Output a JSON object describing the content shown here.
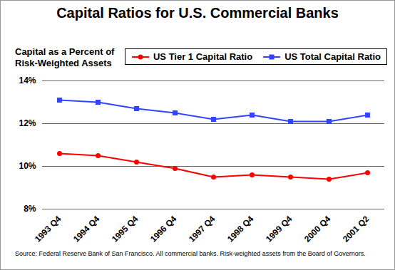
{
  "chart_data": {
    "type": "line",
    "title": "Capital Ratios for U.S. Commercial Banks",
    "ylabel": "Capital as a Percent of\nRisk-Weighted Assets",
    "caption": "Source: Federal Reserve Bank of San Francisco.  All commercial banks.  Risk-weighted assets from the Board of Governors.",
    "categories": [
      "1993 Q4",
      "1994 Q4",
      "1995 Q4",
      "1996 Q4",
      "1997 Q4",
      "1998 Q4",
      "1999 Q4",
      "2000 Q4",
      "2001 Q2"
    ],
    "series": [
      {
        "name": "US Tier 1 Capital Ratio",
        "color": "#ff0000",
        "marker": "circle",
        "values": [
          10.6,
          10.5,
          10.2,
          9.9,
          9.5,
          9.6,
          9.5,
          9.4,
          9.7
        ]
      },
      {
        "name": "US Total Capital Ratio",
        "color": "#3344ff",
        "marker": "square",
        "values": [
          13.1,
          13.0,
          12.7,
          12.5,
          12.2,
          12.4,
          12.1,
          12.1,
          12.4
        ]
      }
    ],
    "ylim": [
      8,
      14
    ],
    "yticks": [
      {
        "value": 8,
        "label": "8%"
      },
      {
        "value": 10,
        "label": "10%"
      },
      {
        "value": 12,
        "label": "12%"
      },
      {
        "value": 14,
        "label": "14%"
      }
    ],
    "grid": true,
    "legend": "top-right"
  }
}
